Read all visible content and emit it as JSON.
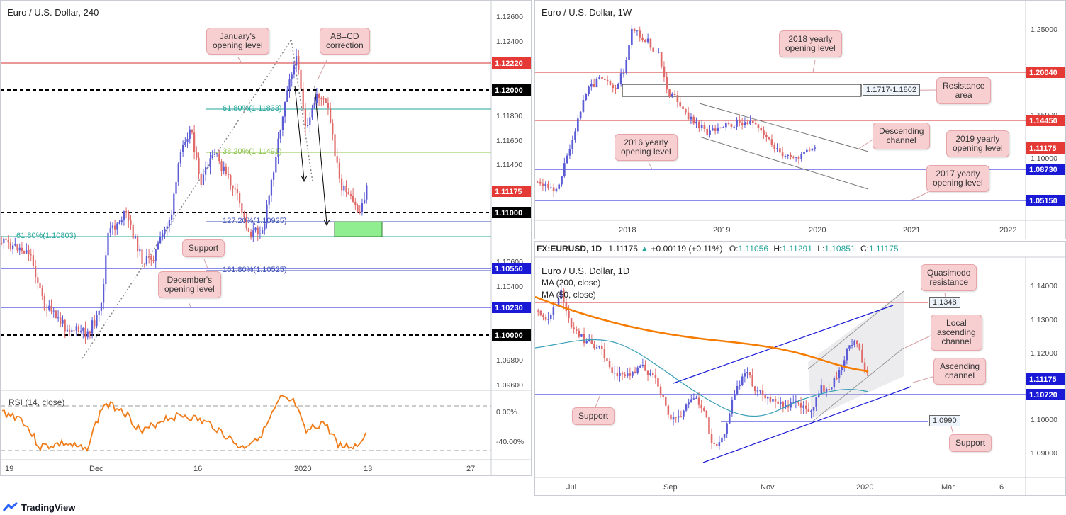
{
  "panels": {
    "h4": {
      "title": "Euro / U.S. Dollar, 240",
      "y_ticks": [
        "1.12600",
        "1.12400",
        "1.11800",
        "1.11600",
        "1.11400",
        "1.10600",
        "1.10400",
        "1.09800",
        "1.09600"
      ],
      "price_badges": [
        {
          "value": "1.12220",
          "color": "#e53935"
        },
        {
          "value": "1.12000",
          "color": "#000000"
        },
        {
          "value": "1.11175",
          "color": "#e53935"
        },
        {
          "value": "1.11000",
          "color": "#000000"
        },
        {
          "value": "1.10550",
          "color": "#1a1ad6"
        },
        {
          "value": "1.10230",
          "color": "#1a1ad6"
        },
        {
          "value": "1.10000",
          "color": "#000000"
        }
      ],
      "x_ticks": [
        "19",
        "Dec",
        "16",
        "2020",
        "13",
        "27"
      ],
      "fib_labels": {
        "f618": "61.80%(1.11833)",
        "f382": "38.20%(1.11491)",
        "f1272": "127.20%(1.10925)",
        "f618b": "61.80%(1.10803)",
        "f1618": "161.80%(1.10525)"
      },
      "bubbles": {
        "jan": "January's\nopening level",
        "abcd": "AB=CD\ncorrection",
        "support": "Support",
        "dec": "December's\nopening level"
      },
      "rsi": {
        "label": "RSI (14, close)",
        "ticks": [
          "0.00%",
          "-40.00%"
        ]
      }
    },
    "weekly": {
      "title": "Euro / U.S. Dollar, 1W",
      "y_ticks": [
        "1.25000",
        "1.15000",
        "1.10000"
      ],
      "price_badges": [
        {
          "value": "1.20040",
          "color": "#e53935"
        },
        {
          "value": "1.14450",
          "color": "#e53935"
        },
        {
          "value": "1.11175",
          "color": "#e53935"
        },
        {
          "value": "1.08730",
          "color": "#1a1ad6"
        },
        {
          "value": "1.05150",
          "color": "#1a1ad6"
        }
      ],
      "x_ticks": [
        "2018",
        "2019",
        "2020",
        "2021",
        "2022"
      ],
      "box_label": "1.1717-1.1862",
      "bubbles": {
        "y2018": "2018 yearly\nopening level",
        "resistance": "Resistance\narea",
        "descending": "Descending\nchannel",
        "y2019": "2019 yearly\nopening level",
        "y2016": "2016 yearly\nopening level",
        "y2017": "2017 yearly\nopening level"
      }
    },
    "daily": {
      "info": {
        "symbol": "FX:EURUSD, 1D",
        "last": "1.11175",
        "change": "+0.00119 (+0.11%)",
        "o_label": "O:",
        "o": "1.11056",
        "h_label": "H:",
        "h": "1.11291",
        "l_label": "L:",
        "l": "1.10851",
        "c_label": "C:",
        "c": "1.11175"
      },
      "title": "Euro / U.S. Dollar, 1D",
      "ma200": "MA (200, close)",
      "ma50": "MA (50, close)",
      "y_ticks": [
        "1.14000",
        "1.13000",
        "1.12000",
        "1.10000",
        "1.09000"
      ],
      "price_badges": [
        {
          "value": "1.11175",
          "color": "#1a1ad6"
        },
        {
          "value": "1.10720",
          "color": "#1a1ad6"
        }
      ],
      "x_ticks": [
        "Jul",
        "Sep",
        "Nov",
        "2020",
        "Mar",
        "6"
      ],
      "box_1348": "1.1348",
      "box_0990": "1.0990",
      "bubbles": {
        "quasimodo": "Quasimodo\nresistance",
        "local": "Local\nascending\nchannel",
        "ascending": "Ascending\nchannel",
        "support_l": "Support",
        "support_r": "Support"
      }
    }
  },
  "brand": "TradingView",
  "colors": {
    "up": "#5b5bd6",
    "down": "#e06a6a",
    "red_line": "#d32f2f",
    "blue_line": "#1a1ad6",
    "ma200": "#f57c00",
    "ma50": "#3aa0b8",
    "rsi": "#f07c1a"
  }
}
